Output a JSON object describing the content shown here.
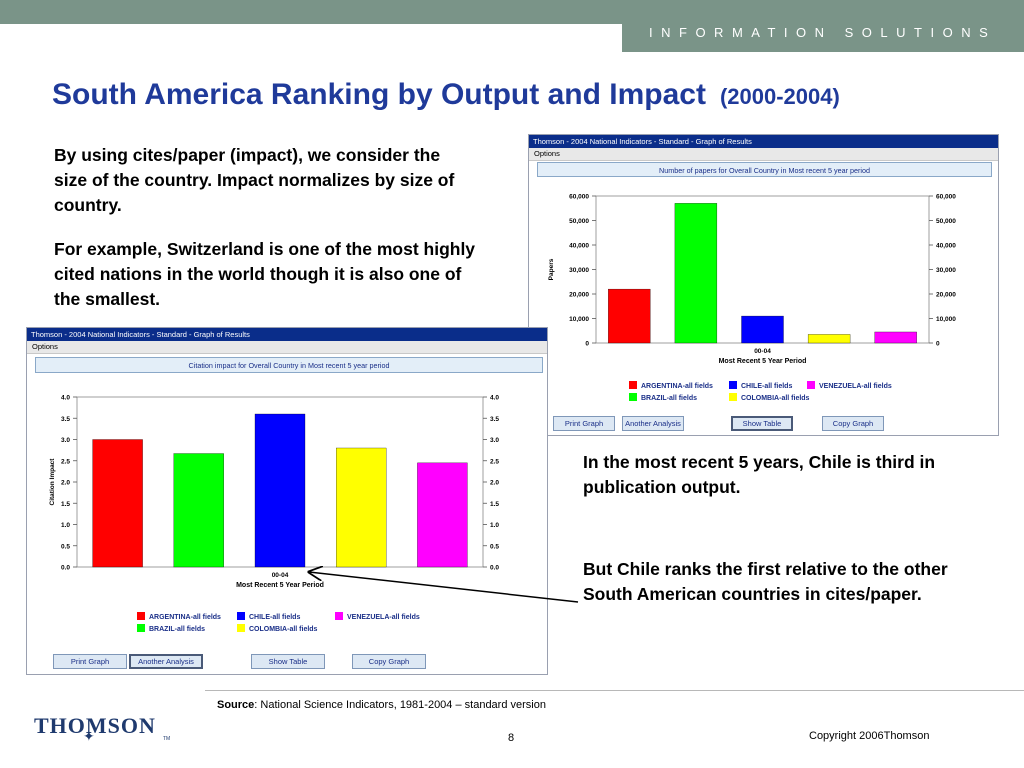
{
  "banner": "INFORMATION SOLUTIONS",
  "title": "South America Ranking by Output and Impact",
  "title_sub": "(2000-2004)",
  "para1": "By using cites/paper (impact), we consider the size of the country.  Impact normalizes by size of country.",
  "para2": "For example, Switzerland is one of the most highly cited nations in the world though it is also one of the smallest.",
  "para3": "In the most recent 5 years, Chile is third in publication output.",
  "para4": "But Chile ranks the first relative to the other South American countries in cites/paper.",
  "source_label": "Source",
  "source_text": ": National Science Indicators, 1981-2004 – standard version",
  "logo": "THOMSON",
  "logo_tm": "TM",
  "page_number": "8",
  "copyright": "Copyright 2006Thomson",
  "colors": {
    "argentina": "#ff0000",
    "brazil": "#00ff00",
    "chile": "#0000ff",
    "colombia": "#ffff00",
    "venezuela": "#ff00ff",
    "accent": "#1f3a9a"
  },
  "window_papers": {
    "title": "Thomson - 2004 National Indicators - Standard - Graph of Results",
    "menu": "Options",
    "header": "Number of papers for Overall Country in Most recent 5 year period",
    "buttons": [
      "Print Graph",
      "Another Analysis",
      "Show Table",
      "Copy Graph"
    ],
    "active_button": 2
  },
  "window_impact": {
    "title": "Thomson - 2004 National Indicators - Standard - Graph of Results",
    "menu": "Options",
    "header": "Citation impact for Overall Country in Most recent 5 year period",
    "buttons": [
      "Print Graph",
      "Another Analysis",
      "Show Table",
      "Copy Graph"
    ],
    "active_button": 1
  },
  "chart_data": [
    {
      "type": "bar",
      "title": "Number of papers for Overall Country in Most recent 5 year period",
      "categories": [
        "00-04"
      ],
      "xlabel": "Most Recent 5 Year Period",
      "ylabel": "Papers",
      "ylim": [
        0,
        60000
      ],
      "yticks": [
        "60,000",
        "50,000",
        "40,000",
        "30,000",
        "20,000",
        "10,000",
        "0"
      ],
      "ytick_values": [
        60000,
        50000,
        40000,
        30000,
        20000,
        10000,
        0
      ],
      "series": [
        {
          "name": "ARGENTINA-all fields",
          "value": 22000,
          "color": "#ff0000"
        },
        {
          "name": "BRAZIL-all fields",
          "value": 57000,
          "color": "#00ff00"
        },
        {
          "name": "CHILE-all fields",
          "value": 11000,
          "color": "#0000ff"
        },
        {
          "name": "COLOMBIA-all fields",
          "value": 3500,
          "color": "#ffff00"
        },
        {
          "name": "VENEZUELA-all fields",
          "value": 4500,
          "color": "#ff00ff"
        }
      ]
    },
    {
      "type": "bar",
      "title": "Citation impact for Overall Country in Most recent 5 year period",
      "categories": [
        "00-04"
      ],
      "xlabel": "Most Recent 5 Year Period",
      "ylabel": "Citation Impact",
      "ylim": [
        0,
        4
      ],
      "yticks": [
        "4.0",
        "3.5",
        "3.0",
        "2.5",
        "2.0",
        "1.5",
        "1.0",
        "0.5",
        "0.0"
      ],
      "ytick_values": [
        4,
        3.5,
        3,
        2.5,
        2,
        1.5,
        1,
        0.5,
        0
      ],
      "series": [
        {
          "name": "ARGENTINA-all fields",
          "value": 3.0,
          "color": "#ff0000"
        },
        {
          "name": "BRAZIL-all fields",
          "value": 2.67,
          "color": "#00ff00"
        },
        {
          "name": "CHILE-all fields",
          "value": 3.6,
          "color": "#0000ff"
        },
        {
          "name": "COLOMBIA-all fields",
          "value": 2.8,
          "color": "#ffff00"
        },
        {
          "name": "VENEZUELA-all fields",
          "value": 2.45,
          "color": "#ff00ff"
        }
      ]
    }
  ]
}
